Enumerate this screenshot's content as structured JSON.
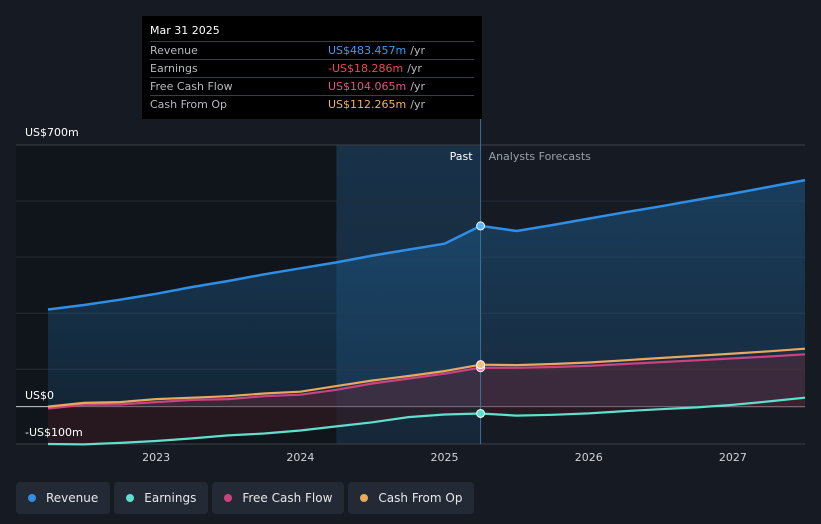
{
  "tooltip": {
    "date": "Mar 31 2025",
    "rows": [
      {
        "label": "Revenue",
        "value": "US$483.457m",
        "unit": "/yr",
        "color": "#3b9cf0"
      },
      {
        "label": "Earnings",
        "value": "-US$18.286m",
        "unit": "/yr",
        "color": "#f0484b"
      },
      {
        "label": "Free Cash Flow",
        "value": "US$104.065m",
        "unit": "/yr",
        "color": "#e0558a"
      },
      {
        "label": "Cash From Op",
        "value": "US$112.265m",
        "unit": "/yr",
        "color": "#f0b264"
      }
    ]
  },
  "legend": [
    {
      "label": "Revenue",
      "color": "#2f8fe6"
    },
    {
      "label": "Earnings",
      "color": "#5fe0cf"
    },
    {
      "label": "Free Cash Flow",
      "color": "#c9447e"
    },
    {
      "label": "Cash From Op",
      "color": "#e8a85e"
    }
  ],
  "chart_data": {
    "type": "line",
    "y_top_label": "US$700m",
    "y_zero_label": "US$0",
    "y_bottom_label": "-US$100m",
    "ylim": [
      -100,
      700
    ],
    "xlim": [
      2022.25,
      2027.5
    ],
    "x_ticks": [
      {
        "value": 2023,
        "label": "2023"
      },
      {
        "value": 2024,
        "label": "2024"
      },
      {
        "value": 2025,
        "label": "2025"
      },
      {
        "value": 2026,
        "label": "2026"
      },
      {
        "value": 2027,
        "label": "2027"
      }
    ],
    "past_label": "Past",
    "forecast_label": "Analysts Forecasts",
    "divider_x": 2025.25,
    "highlight_start_x": 2024.25,
    "series": [
      {
        "name": "Revenue",
        "color": "#2f8fe6",
        "x": [
          2022.25,
          2022.5,
          2022.75,
          2023.0,
          2023.25,
          2023.5,
          2023.75,
          2024.0,
          2024.25,
          2024.5,
          2024.75,
          2025.0,
          2025.25,
          2025.5,
          2025.75,
          2026.0,
          2026.25,
          2026.5,
          2026.75,
          2027.0,
          2027.25,
          2027.5
        ],
        "y": [
          260,
          272,
          286,
          302,
          320,
          336,
          354,
          370,
          386,
          404,
          420,
          436,
          483.457,
          470,
          486,
          503,
          520,
          536,
          553,
          570,
          588,
          606
        ]
      },
      {
        "name": "Earnings",
        "color": "#5fe0cf",
        "x": [
          2022.25,
          2022.5,
          2022.75,
          2023.0,
          2023.25,
          2023.5,
          2023.75,
          2024.0,
          2024.25,
          2024.5,
          2024.75,
          2025.0,
          2025.25,
          2025.5,
          2025.75,
          2026.0,
          2026.25,
          2026.5,
          2026.75,
          2027.0,
          2027.25,
          2027.5
        ],
        "y": [
          -100,
          -101,
          -97,
          -92,
          -85,
          -77,
          -72,
          -64,
          -53,
          -42,
          -28,
          -21,
          -18.286,
          -24,
          -22,
          -18,
          -12,
          -7,
          -2,
          5,
          14,
          24
        ]
      },
      {
        "name": "Free Cash Flow",
        "color": "#c9447e",
        "x": [
          2022.25,
          2022.5,
          2022.75,
          2023.0,
          2023.25,
          2023.5,
          2023.75,
          2024.0,
          2024.25,
          2024.5,
          2024.75,
          2025.0,
          2025.25,
          2025.5,
          2025.75,
          2026.0,
          2026.25,
          2026.5,
          2026.75,
          2027.0,
          2027.25,
          2027.5
        ],
        "y": [
          -5,
          5,
          6,
          12,
          18,
          20,
          28,
          32,
          45,
          62,
          75,
          88,
          104.065,
          104,
          106,
          109,
          114,
          119,
          124,
          129,
          134,
          140
        ]
      },
      {
        "name": "Cash From Op",
        "color": "#e8a85e",
        "x": [
          2022.25,
          2022.5,
          2022.75,
          2023.0,
          2023.25,
          2023.5,
          2023.75,
          2024.0,
          2024.25,
          2024.5,
          2024.75,
          2025.0,
          2025.25,
          2025.5,
          2025.75,
          2026.0,
          2026.25,
          2026.5,
          2026.75,
          2027.0,
          2027.25,
          2027.5
        ],
        "y": [
          0,
          10,
          12,
          20,
          24,
          28,
          35,
          40,
          55,
          70,
          82,
          95,
          112.265,
          111,
          114,
          118,
          124,
          130,
          136,
          142,
          148,
          155
        ]
      }
    ]
  }
}
